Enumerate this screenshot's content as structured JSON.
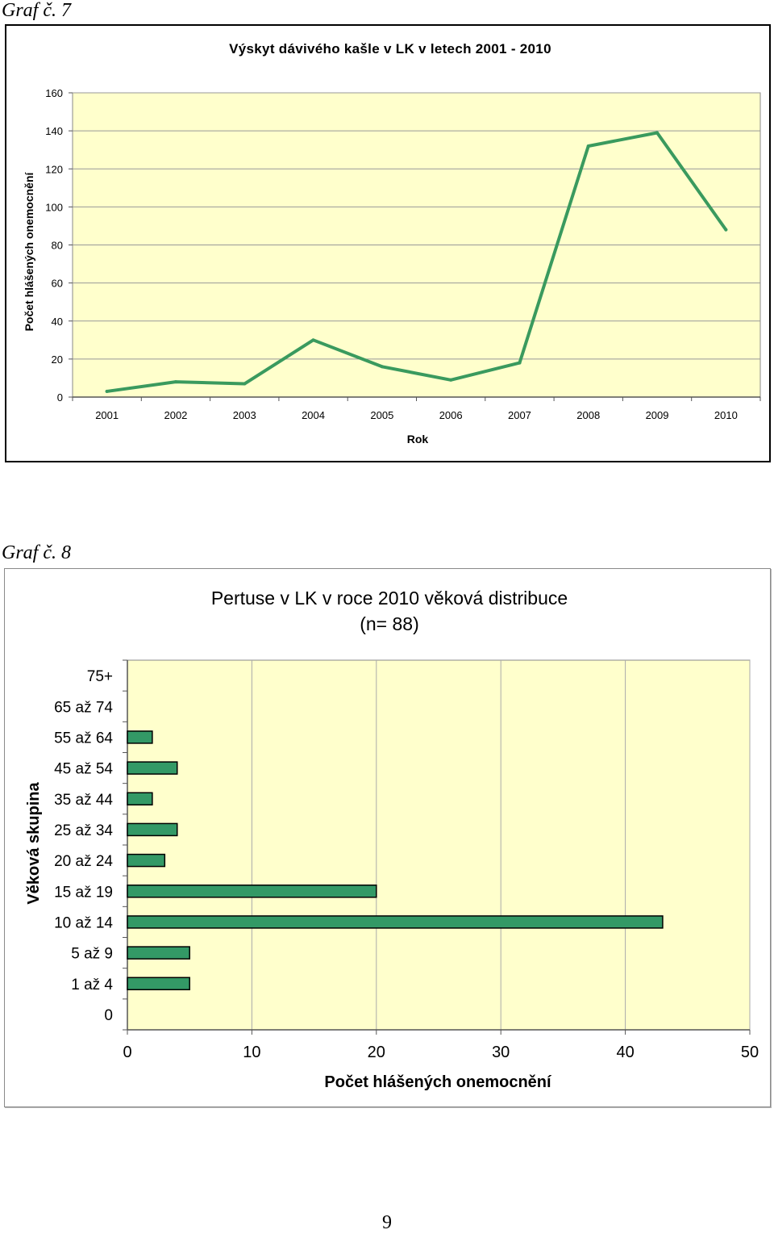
{
  "page": {
    "number": "9"
  },
  "charts": [
    {
      "caption": "Graf č. 7"
    },
    {
      "caption": "Graf č. 8"
    }
  ],
  "chart_data": [
    {
      "type": "line",
      "title": "Výskyt dávivého kašle v LK v letech 2001 - 2010",
      "xlabel": "Rok",
      "ylabel": "Počet hlášených onemocnění",
      "x": [
        "2001",
        "2002",
        "2003",
        "2004",
        "2005",
        "2006",
        "2007",
        "2008",
        "2009",
        "2010"
      ],
      "series": [
        {
          "values": [
            3,
            8,
            7,
            30,
            16,
            9,
            18,
            132,
            139,
            88
          ]
        }
      ],
      "ylim": [
        0,
        160
      ],
      "yticks": [
        0,
        20,
        40,
        60,
        80,
        100,
        120,
        140,
        160
      ],
      "grid": true,
      "legend": "none",
      "colors": {
        "line": "#3a9a5e",
        "plot_bg": "#ffffcc",
        "grid": "#999999"
      }
    },
    {
      "type": "bar",
      "orientation": "horizontal",
      "title": "Pertuse v LK v roce 2010 věková distribuce",
      "subtitle": "(n= 88)",
      "xlabel": "Počet hlášených onemocnění",
      "ylabel": "Věková skupina",
      "categories": [
        "75+",
        "65 až 74",
        "55 až 64",
        "45 až 54",
        "35 až 44",
        "25 až 34",
        "20 až 24",
        "15 až 19",
        "10 až 14",
        "5 až 9",
        "1 až 4",
        "0"
      ],
      "values": [
        0,
        0,
        2,
        4,
        2,
        4,
        3,
        20,
        43,
        5,
        5,
        0
      ],
      "xlim": [
        0,
        50
      ],
      "xticks": [
        0,
        10,
        20,
        30,
        40,
        50
      ],
      "grid": true,
      "legend": "none",
      "colors": {
        "bar": "#339966",
        "bar_stroke": "#000000",
        "plot_bg": "#ffffcc",
        "grid": "#aaaaaa"
      }
    }
  ]
}
